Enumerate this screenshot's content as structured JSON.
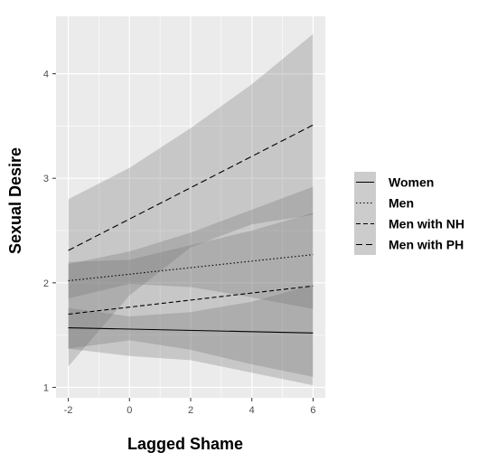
{
  "chart_data": {
    "type": "line",
    "xlabel": "Lagged Shame",
    "ylabel": "Sexual Desire",
    "xlim": [
      -2.4,
      6.4
    ],
    "ylim": [
      0.9,
      4.55
    ],
    "x_ticks": [
      -2,
      0,
      2,
      4,
      6
    ],
    "y_ticks": [
      1,
      2,
      3,
      4
    ],
    "grid": true,
    "legend_position": "right",
    "series": [
      {
        "name": "Women",
        "dash": "solid",
        "x": [
          -2,
          6
        ],
        "y": [
          1.57,
          1.52
        ],
        "ci_x": [
          -2,
          0,
          2,
          4,
          6
        ],
        "ci_lower": [
          1.37,
          1.45,
          1.36,
          1.22,
          1.1
        ],
        "ci_upper": [
          1.76,
          1.68,
          1.72,
          1.82,
          1.98
        ]
      },
      {
        "name": "Men",
        "dash": "dotted",
        "x": [
          -2,
          6
        ],
        "y": [
          2.02,
          2.27
        ],
        "ci_x": [
          -2,
          0,
          2,
          4,
          6
        ],
        "ci_lower": [
          1.85,
          1.99,
          1.96,
          1.86,
          1.75
        ],
        "ci_upper": [
          2.2,
          2.22,
          2.36,
          2.5,
          2.67
        ]
      },
      {
        "name": "Men with NH",
        "dash": "dashed-short",
        "x": [
          -2,
          6
        ],
        "y": [
          1.7,
          1.97
        ],
        "ci_x": [
          -2,
          0,
          2,
          4,
          6
        ],
        "ci_lower": [
          1.37,
          1.3,
          1.26,
          1.14,
          1.02
        ],
        "ci_upper": [
          2.18,
          2.3,
          2.48,
          2.7,
          2.92
        ]
      },
      {
        "name": "Men with PH",
        "dash": "dashed-long",
        "x": [
          -2,
          6
        ],
        "y": [
          2.31,
          3.51
        ],
        "ci_x": [
          -2,
          0,
          2,
          4,
          6
        ],
        "ci_lower": [
          1.2,
          1.88,
          2.34,
          2.56,
          2.65
        ],
        "ci_upper": [
          2.8,
          3.1,
          3.48,
          3.9,
          4.38
        ]
      }
    ],
    "colors": {
      "panel": "#ebebeb",
      "grid": "#ffffff",
      "ribbon": "#6a6a6a",
      "ribbon_opacity": 0.28,
      "line": "#000000"
    }
  }
}
